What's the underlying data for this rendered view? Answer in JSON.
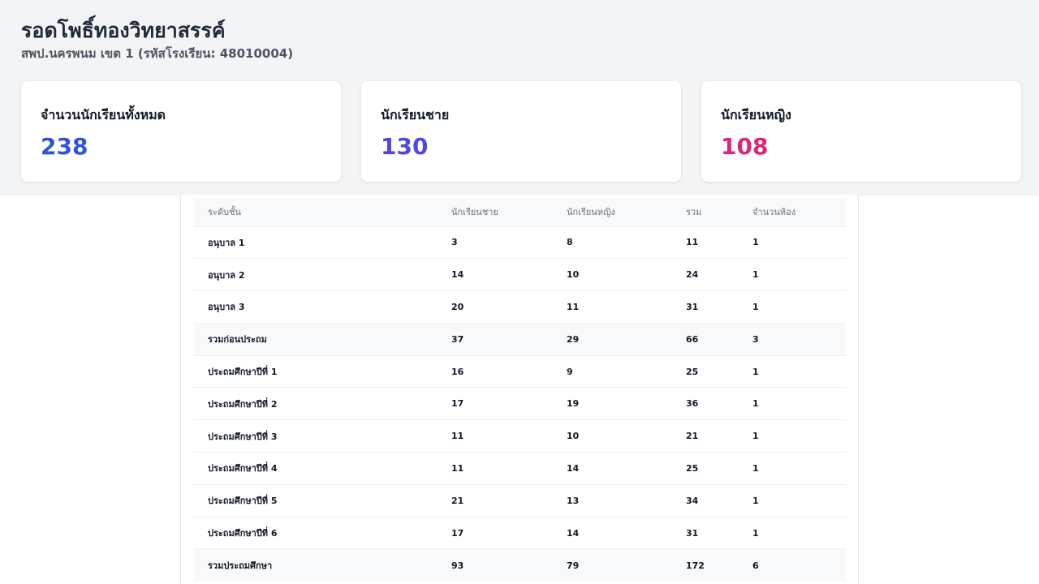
{
  "header": {
    "school_name": "รอดโพธิ์ทองวิทยาสรรค์",
    "subtitle": "สพป.นครพนม เขต 1 (รหัสโรงเรียน: 48010004)"
  },
  "cards": [
    {
      "title": "จำนวนนักเรียนทั้งหมด",
      "value": "238",
      "color": "#2f55d4"
    },
    {
      "title": "นักเรียนชาย",
      "value": "130",
      "color": "#4f46e5"
    },
    {
      "title": "นักเรียนหญิง",
      "value": "108",
      "color": "#db2777"
    }
  ],
  "table": {
    "columns": [
      "ระดับชั้น",
      "นักเรียนชาย",
      "นักเรียนหญิง",
      "รวม",
      "จำนวนห้อง"
    ],
    "rows": [
      {
        "level": "อนุบาล 1",
        "male": "3",
        "female": "8",
        "total": "11",
        "rooms": "1",
        "subtotal": false
      },
      {
        "level": "อนุบาล 2",
        "male": "14",
        "female": "10",
        "total": "24",
        "rooms": "1",
        "subtotal": false
      },
      {
        "level": "อนุบาล 3",
        "male": "20",
        "female": "11",
        "total": "31",
        "rooms": "1",
        "subtotal": false
      },
      {
        "level": "รวมก่อนประถม",
        "male": "37",
        "female": "29",
        "total": "66",
        "rooms": "3",
        "subtotal": true
      },
      {
        "level": "ประถมศึกษาปีที่ 1",
        "male": "16",
        "female": "9",
        "total": "25",
        "rooms": "1",
        "subtotal": false
      },
      {
        "level": "ประถมศึกษาปีที่ 2",
        "male": "17",
        "female": "19",
        "total": "36",
        "rooms": "1",
        "subtotal": false
      },
      {
        "level": "ประถมศึกษาปีที่ 3",
        "male": "11",
        "female": "10",
        "total": "21",
        "rooms": "1",
        "subtotal": false
      },
      {
        "level": "ประถมศึกษาปีที่ 4",
        "male": "11",
        "female": "14",
        "total": "25",
        "rooms": "1",
        "subtotal": false
      },
      {
        "level": "ประถมศึกษาปีที่ 5",
        "male": "21",
        "female": "13",
        "total": "34",
        "rooms": "1",
        "subtotal": false
      },
      {
        "level": "ประถมศึกษาปีที่ 6",
        "male": "17",
        "female": "14",
        "total": "31",
        "rooms": "1",
        "subtotal": false
      },
      {
        "level": "รวมประถมศึกษา",
        "male": "93",
        "female": "79",
        "total": "172",
        "rooms": "6",
        "subtotal": true
      }
    ]
  }
}
